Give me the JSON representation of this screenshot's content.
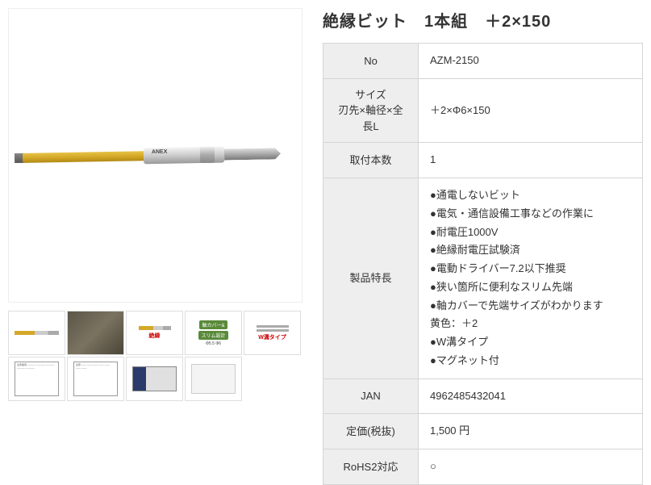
{
  "title": "絶縁ビット　1本組　＋2×150",
  "spec": {
    "rows": [
      {
        "label": "No",
        "value": "AZM-2150"
      },
      {
        "label": "サイズ\n刃先×軸径×全長L",
        "value": "＋2×Φ6×150"
      },
      {
        "label": "取付本数",
        "value": "1"
      },
      {
        "label": "製品特長",
        "features": [
          "●通電しないビット",
          "●電気・通信設備工事などの作業に",
          "●耐電圧1000V",
          "●絶縁耐電圧試験済",
          "●電動ドライバー7.2以下推奨",
          "●狭い箇所に便利なスリム先端",
          "●軸カバーで先端サイズがわかります",
          "黄色：＋2",
          "●W溝タイプ",
          "●マグネット付"
        ]
      },
      {
        "label": "JAN",
        "value": "4962485432041"
      },
      {
        "label": "定価(税抜)",
        "value": "1,500 円"
      },
      {
        "label": "RoHS2対応",
        "value": "○"
      }
    ]
  },
  "thumbs": {
    "green_label_top": "軸カバー&",
    "green_label_bottom": "スリム設計",
    "red_label": "W溝タイプ"
  },
  "style": {
    "bg_color": "#ffffff",
    "text_color": "#333333",
    "th_bg": "#eeeeee",
    "border_color": "#d5d5d5",
    "thumb_border": "#dedede",
    "title_fontsize": 20,
    "body_fontsize": 13
  }
}
